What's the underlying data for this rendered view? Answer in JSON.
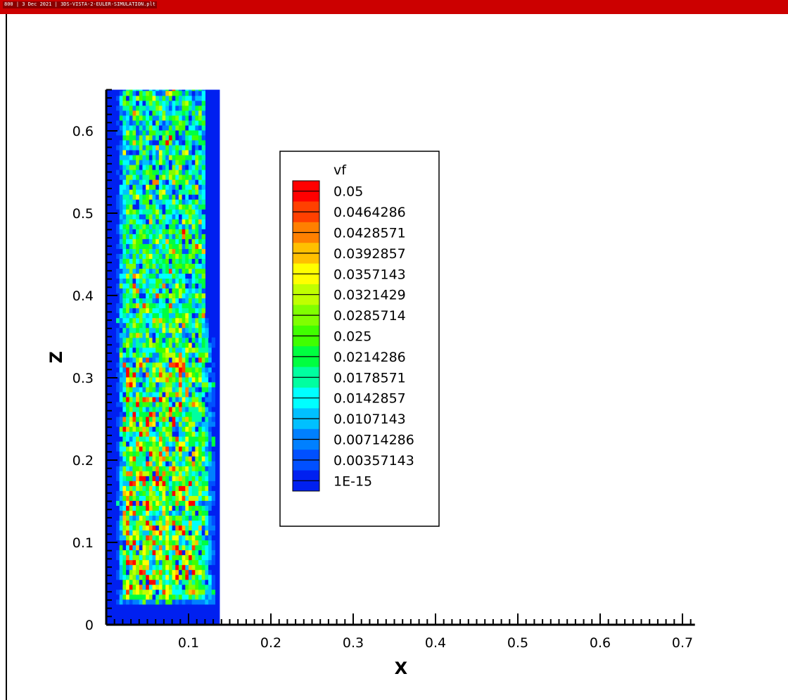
{
  "window": {
    "title": "800 | 3 Dec 2021 | 3DS-VISTA-2-EULER-SIMULATION.plt"
  },
  "chart_data": {
    "type": "heatmap",
    "title": "",
    "xlabel": "X",
    "ylabel": "Z",
    "xlim": [
      0,
      0.71
    ],
    "ylim": [
      0,
      0.65
    ],
    "x_ticks": [
      "0.1",
      "0.2",
      "0.3",
      "0.4",
      "0.5",
      "0.6",
      "0.7"
    ],
    "x_tick_values": [
      0.1,
      0.2,
      0.3,
      0.4,
      0.5,
      0.6,
      0.7
    ],
    "y_ticks": [
      "0",
      "0.1",
      "0.2",
      "0.3",
      "0.4",
      "0.5",
      "0.6"
    ],
    "y_tick_values": [
      0,
      0.1,
      0.2,
      0.3,
      0.4,
      0.5,
      0.6
    ],
    "domain": {
      "x_min": 0,
      "x_max": 0.138,
      "z_min": 0,
      "z_max": 0.65
    },
    "filled_region": {
      "x_min": 0.02,
      "x_max": 0.12,
      "z_min": 0.025,
      "z_top_outer": 0.35,
      "z_top_inner": 0.65
    },
    "legend": {
      "title": "vf",
      "placement": "center-right",
      "levels": [
        {
          "label": "0.05",
          "value": 0.05,
          "color": "#ff0000"
        },
        {
          "label": "0.0464286",
          "value": 0.0464286,
          "color": "#ff4000"
        },
        {
          "label": "0.0428571",
          "value": 0.0428571,
          "color": "#ff8000"
        },
        {
          "label": "0.0392857",
          "value": 0.0392857,
          "color": "#ffc000"
        },
        {
          "label": "0.0357143",
          "value": 0.0357143,
          "color": "#ffff00"
        },
        {
          "label": "0.0321429",
          "value": 0.0321429,
          "color": "#c0ff00"
        },
        {
          "label": "0.0285714",
          "value": 0.0285714,
          "color": "#80ff00"
        },
        {
          "label": "0.025",
          "value": 0.025,
          "color": "#40ff00"
        },
        {
          "label": "0.0214286",
          "value": 0.0214286,
          "color": "#00ff40"
        },
        {
          "label": "0.0178571",
          "value": 0.0178571,
          "color": "#00ffa0"
        },
        {
          "label": "0.0142857",
          "value": 0.0142857,
          "color": "#00ffff"
        },
        {
          "label": "0.0107143",
          "value": 0.0107143,
          "color": "#00c0ff"
        },
        {
          "label": "0.00714286",
          "value": 0.00714286,
          "color": "#0080ff"
        },
        {
          "label": "0.00357143",
          "value": 0.00357143,
          "color": "#0050ff"
        },
        {
          "label": "1E-15",
          "value": 1e-15,
          "color": "#0020f0"
        }
      ]
    }
  }
}
